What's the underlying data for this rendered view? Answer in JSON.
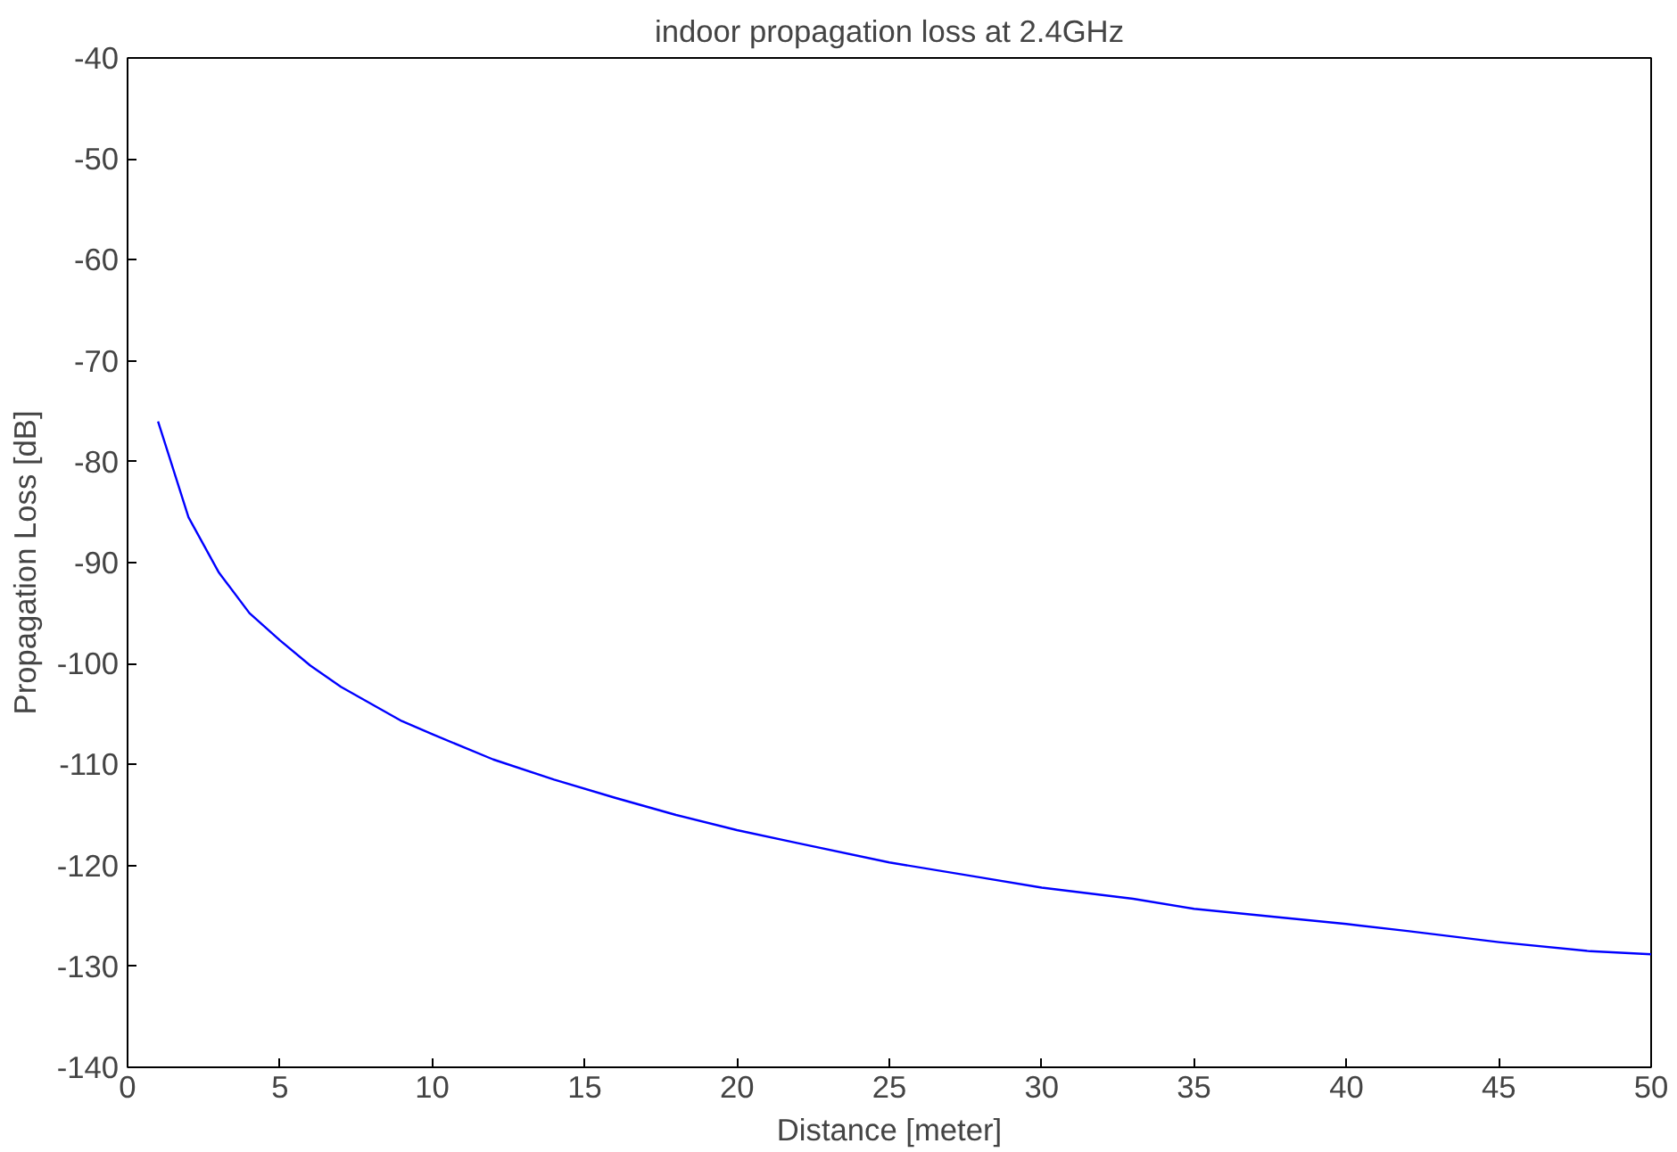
{
  "chart_data": {
    "type": "line",
    "title": "indoor propagation loss at 2.4GHz",
    "xlabel": "Distance [meter]",
    "ylabel": "Propagation Loss [dB]",
    "x": [
      1,
      2,
      3,
      4,
      5,
      6,
      7,
      8,
      9,
      10,
      12,
      14,
      16,
      18,
      20,
      22,
      25,
      28,
      30,
      33,
      35,
      38,
      40,
      42,
      45,
      48,
      50
    ],
    "series": [
      {
        "color": "#0000ff",
        "values": [
          -76,
          -85.5,
          -91,
          -95,
          -97.7,
          -100.2,
          -102.3,
          -104,
          -105.7,
          -107,
          -109.5,
          -111.5,
          -113.3,
          -115,
          -116.5,
          -117.8,
          -119.7,
          -121.2,
          -122.2,
          -123.3,
          -124.3,
          -125.2,
          -125.8,
          -126.5,
          -127.6,
          -128.5,
          -128.8
        ]
      }
    ],
    "xlim": [
      0,
      50
    ],
    "ylim": [
      -140,
      -40
    ],
    "xticks": [
      0,
      5,
      10,
      15,
      20,
      25,
      30,
      35,
      40,
      45,
      50
    ],
    "yticks": [
      -140,
      -130,
      -120,
      -110,
      -100,
      -90,
      -80,
      -70,
      -60,
      -50,
      -40
    ],
    "grid": false,
    "marker": "none",
    "line_style": "solid"
  }
}
